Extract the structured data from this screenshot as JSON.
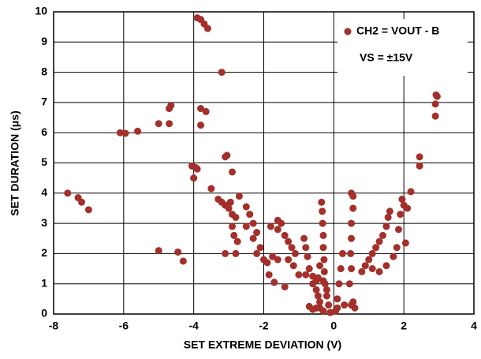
{
  "chart_data": {
    "type": "scatter",
    "x_label": "SET EXTREME DEVIATION (V)",
    "y_label": "SET DURATION (μs)",
    "annotation": "VS = ±15V",
    "xlim": [
      -8,
      4
    ],
    "xticks": [
      -8,
      -6,
      -4,
      -2,
      0,
      2,
      4
    ],
    "ylim": [
      0,
      10
    ],
    "yticks": [
      0,
      1,
      2,
      3,
      4,
      5,
      6,
      7,
      8,
      9,
      10
    ],
    "grid": true,
    "legend": "upper right",
    "series": [
      {
        "name": "CH2 = VOUT - B",
        "color": "#a3302a",
        "x": [
          -7.6,
          -7.3,
          -7.2,
          -7.0,
          -6.1,
          -5.95,
          -5.6,
          -5.0,
          -4.7,
          -4.7,
          -4.65,
          -5.0,
          -4.45,
          -4.3,
          -4.05,
          -3.95,
          -3.9,
          -4.0,
          -3.9,
          -3.8,
          -3.7,
          -3.6,
          -3.8,
          -3.65,
          -3.8,
          -3.5,
          -3.2,
          -3.1,
          -3.05,
          -2.9,
          -2.95,
          -3.3,
          -3.2,
          -3.1,
          -3.0,
          -2.9,
          -2.8,
          -2.9,
          -2.85,
          -2.75,
          -2.8,
          -3.1,
          -2.7,
          -2.5,
          -2.4,
          -2.3,
          -2.2,
          -2.5,
          -2.3,
          -2.1,
          -2.2,
          -2.0,
          -1.9,
          -1.75,
          -1.6,
          -1.85,
          -1.7,
          -1.4,
          -1.8,
          -1.6,
          -1.4,
          -1.3,
          -1.2,
          -1.1,
          -1.3,
          -1.15,
          -1.0,
          -0.8,
          -0.6,
          -0.5,
          -1.6,
          -1.5,
          -0.85,
          -0.8,
          -0.75,
          -0.7,
          -0.6,
          -0.5,
          -0.45,
          -0.4,
          -0.4,
          -0.7,
          -0.5,
          -0.3,
          -0.35,
          -0.33,
          -0.32,
          -0.3,
          -0.3,
          -0.28,
          -0.27,
          -0.25,
          -0.2,
          -0.15,
          -0.1,
          -0.4,
          -0.45,
          -0.3,
          -0.2,
          -0.6,
          0.1,
          0.15,
          0.2,
          0.25,
          0.1,
          0.05,
          0.3,
          0.5,
          0.55,
          0.45,
          0.5,
          0.48,
          0.5,
          0.5,
          0.55,
          0.55,
          0.5,
          0.6,
          0.8,
          0.9,
          1.0,
          1.1,
          1.2,
          1.3,
          1.4,
          1.5,
          1.55,
          1.6,
          1.1,
          1.3,
          1.5,
          1.7,
          1.8,
          1.85,
          1.9,
          2.0,
          1.95,
          2.1,
          2.05,
          2.2,
          2.45,
          2.45,
          2.9,
          2.9,
          2.95,
          2.92
        ],
        "values": [
          4.0,
          3.85,
          3.7,
          3.45,
          6.0,
          5.98,
          6.05,
          6.3,
          6.3,
          6.8,
          6.9,
          2.1,
          2.05,
          1.75,
          4.9,
          4.85,
          4.8,
          4.5,
          9.8,
          9.75,
          9.6,
          9.45,
          6.8,
          6.7,
          6.25,
          4.15,
          8.0,
          5.2,
          5.25,
          4.7,
          3.7,
          3.8,
          3.7,
          3.6,
          3.5,
          3.3,
          3.2,
          2.9,
          2.6,
          2.4,
          2.0,
          2.0,
          3.9,
          3.55,
          3.3,
          3.0,
          2.7,
          2.9,
          2.5,
          2.2,
          2.0,
          1.8,
          1.7,
          1.9,
          1.8,
          1.3,
          1.05,
          0.9,
          2.9,
          2.8,
          2.6,
          2.4,
          2.2,
          2.0,
          1.8,
          1.6,
          1.3,
          1.3,
          1.25,
          1.1,
          3.1,
          3.0,
          2.5,
          2.2,
          1.9,
          1.5,
          1.0,
          0.8,
          0.6,
          0.4,
          0.2,
          0.25,
          0.2,
          0.1,
          3.7,
          3.4,
          3.0,
          2.6,
          2.2,
          1.8,
          1.4,
          1.0,
          0.6,
          0.3,
          0.05,
          1.6,
          1.2,
          1.1,
          0.8,
          0.15,
          0.5,
          1.0,
          1.5,
          2.0,
          0.2,
          0.1,
          0.3,
          0.3,
          0.4,
          1.0,
          1.5,
          2.0,
          2.5,
          3.0,
          3.5,
          3.9,
          4.0,
          0.2,
          1.4,
          1.6,
          1.8,
          2.0,
          2.2,
          2.4,
          2.6,
          2.9,
          3.2,
          3.4,
          1.5,
          1.4,
          1.6,
          1.9,
          2.2,
          2.8,
          3.3,
          3.6,
          3.8,
          3.5,
          2.35,
          4.05,
          5.2,
          4.9,
          6.55,
          6.95,
          7.2,
          7.25
        ]
      }
    ]
  }
}
